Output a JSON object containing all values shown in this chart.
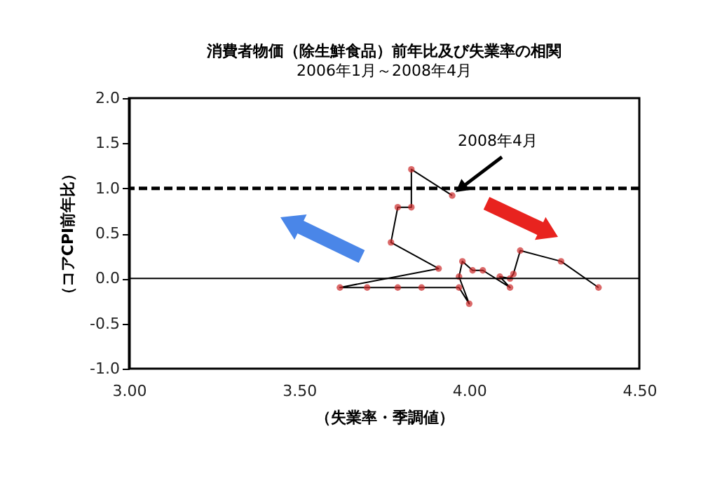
{
  "chart_data": {
    "type": "line",
    "title": "消費者物価（除生鮮食品）前年比及び失業率の相関",
    "subtitle": "2006年1月～2008年4月",
    "xlabel": "（失業率・季調値）",
    "ylabel": "（コアCPI前年比）",
    "x": [
      4.38,
      4.27,
      4.15,
      4.13,
      4.12,
      4.09,
      4.12,
      4.04,
      4.01,
      3.98,
      3.97,
      4.0,
      3.97,
      3.86,
      3.79,
      3.7,
      3.62,
      3.91,
      3.77,
      3.79,
      3.83,
      3.83,
      3.95
    ],
    "series": [
      {
        "color": "#cc2a2a",
        "values": [
          -0.1,
          0.19,
          0.31,
          0.05,
          0.0,
          0.02,
          -0.1,
          0.09,
          0.09,
          0.19,
          0.02,
          -0.28,
          -0.1,
          -0.1,
          -0.1,
          -0.1,
          -0.1,
          0.11,
          0.4,
          0.79,
          0.79,
          1.21,
          0.92
        ]
      }
    ],
    "xlim": [
      3.0,
      4.5
    ],
    "xticks": [
      {
        "value": 3.0,
        "label": "3.00"
      },
      {
        "value": 3.5,
        "label": "3.50"
      },
      {
        "value": 4.0,
        "label": "4.00"
      },
      {
        "value": 4.5,
        "label": "4.50"
      }
    ],
    "ylim": [
      -1.0,
      2.0
    ],
    "yticks": [
      {
        "value": -1.0,
        "label": "-1.0"
      },
      {
        "value": -0.5,
        "label": "-0.5"
      },
      {
        "value": 0,
        "label": "0.0"
      },
      {
        "value": 0.5,
        "label": "0.5"
      },
      {
        "value": 1.0,
        "label": "1.0"
      },
      {
        "value": 1.5,
        "label": "1.5"
      },
      {
        "value": 2.0,
        "label": "2.0"
      }
    ],
    "ref_lines": [
      {
        "axis": "y",
        "value": 1.0,
        "line_style": "dashed",
        "color": "#000000"
      },
      {
        "axis": "y",
        "value": 0,
        "line_style": "solid",
        "color": "#000000"
      }
    ],
    "annotations": [
      "2008年4月"
    ],
    "marker": "circle",
    "line_style": "solid",
    "grid": false
  }
}
